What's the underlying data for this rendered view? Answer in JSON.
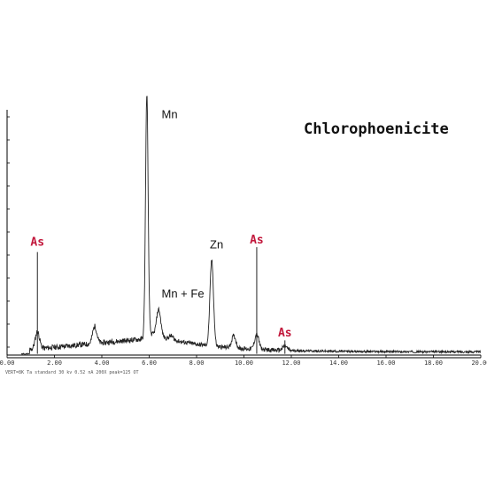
{
  "chart_data": {
    "type": "line",
    "title": "Chlorophoenicite",
    "xlabel": "",
    "ylabel": "",
    "xlim": [
      0,
      20
    ],
    "ylim": [
      0,
      100
    ],
    "x_ticks": [
      "0.00",
      "2.00",
      "4.00",
      "6.00",
      "8.00",
      "10.00",
      "12.00",
      "14.00",
      "16.00",
      "18.00",
      "20.00"
    ],
    "grid": false,
    "footer_text": "VERT=8K  Ta standard  30 kv  0.52 nA  200X  peak=125 OT",
    "peaks": [
      {
        "x": 1.28,
        "y": 7
      },
      {
        "x": 1.28,
        "y": 42
      },
      {
        "x": 3.7,
        "y": 7
      },
      {
        "x": 5.9,
        "y": 100
      },
      {
        "x": 6.4,
        "y": 11
      },
      {
        "x": 6.93,
        "y": 1.5
      },
      {
        "x": 8.64,
        "y": 35
      },
      {
        "x": 9.57,
        "y": 5
      },
      {
        "x": 10.54,
        "y": 6
      },
      {
        "x": 10.54,
        "y": 44
      },
      {
        "x": 11.73,
        "y": 1.8
      },
      {
        "x": 11.73,
        "y": 6
      }
    ],
    "annotations": [
      {
        "text": "Mn",
        "x": 6.3,
        "y": 98,
        "color": "black"
      },
      {
        "text": "Mn + Fe",
        "x": 6.3,
        "y": 25,
        "color": "black"
      },
      {
        "text": "Zn",
        "x": 8.6,
        "y": 45,
        "color": "black"
      },
      {
        "text": "As",
        "x": 1.28,
        "y": 46,
        "color": "#c2183c"
      },
      {
        "text": "As",
        "x": 10.54,
        "y": 47,
        "color": "#c2183c"
      },
      {
        "text": "As",
        "x": 11.73,
        "y": 9,
        "color": "#c2183c"
      }
    ],
    "colors": {
      "spectrum": "#222222",
      "as_label": "#c2183c"
    }
  }
}
